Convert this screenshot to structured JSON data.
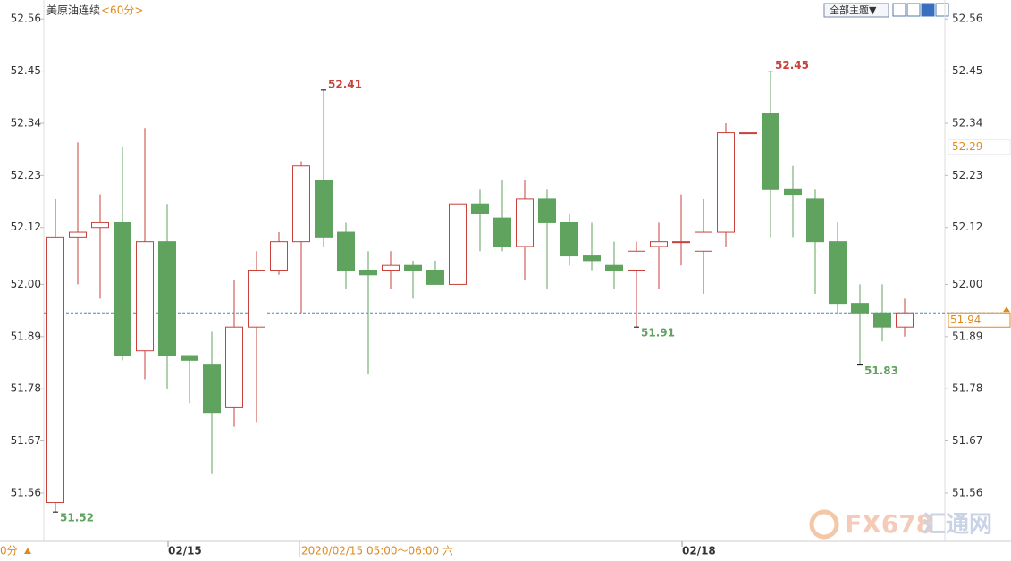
{
  "chart_data": {
    "type": "candlestick",
    "title": "美原油连续",
    "subtitle": "<60分>",
    "toolbar_button": "全部主题▼",
    "bottom_left_label": "0分",
    "crosshair_time": "2020/02/15 05:00～06:00 六",
    "watermark": [
      "FX678",
      "汇通网"
    ],
    "categories": [
      null,
      null,
      null,
      null,
      null,
      "02/15",
      null,
      null,
      null,
      null,
      null,
      null,
      null,
      null,
      null,
      null,
      null,
      null,
      null,
      null,
      null,
      null,
      null,
      null,
      null,
      null,
      null,
      null,
      "02/18",
      null,
      null,
      null,
      null,
      null,
      null,
      null,
      null,
      null,
      null
    ],
    "series": [
      {
        "up_color": "#c8413a",
        "down_color": "#5fa35e",
        "open": [
          51.54,
          52.1,
          52.12,
          52.13,
          51.86,
          52.09,
          51.85,
          51.83,
          51.74,
          51.91,
          52.03,
          52.09,
          52.22,
          52.11,
          52.03,
          52.03,
          52.04,
          52.03,
          52.0,
          52.17,
          52.14,
          52.08,
          52.18,
          52.13,
          52.06,
          52.04,
          52.03,
          52.08,
          52.09,
          52.07,
          52.11,
          52.32,
          52.36,
          52.2,
          52.18,
          52.09,
          51.96,
          51.94,
          51.91
        ],
        "high": [
          52.18,
          52.3,
          52.19,
          52.29,
          52.33,
          52.17,
          51.85,
          51.9,
          52.01,
          52.07,
          52.11,
          52.26,
          52.41,
          52.13,
          52.07,
          52.07,
          52.05,
          52.05,
          52.17,
          52.2,
          52.22,
          52.22,
          52.2,
          52.15,
          52.13,
          52.09,
          52.09,
          52.13,
          52.19,
          52.18,
          52.34,
          52.32,
          52.45,
          52.25,
          52.2,
          52.13,
          52.0,
          52.0,
          51.97
        ],
        "low": [
          51.52,
          52.0,
          51.97,
          51.84,
          51.8,
          51.78,
          51.75,
          51.6,
          51.7,
          51.71,
          52.02,
          51.94,
          52.08,
          51.99,
          51.81,
          51.99,
          51.97,
          52.0,
          52.0,
          52.07,
          52.07,
          52.01,
          51.99,
          52.04,
          52.03,
          51.99,
          51.91,
          51.99,
          52.04,
          51.98,
          52.08,
          52.32,
          52.1,
          52.1,
          51.98,
          51.94,
          51.83,
          51.88,
          51.89
        ],
        "close": [
          52.1,
          52.11,
          52.13,
          51.85,
          52.09,
          51.85,
          51.84,
          51.73,
          51.91,
          52.03,
          52.09,
          52.25,
          52.1,
          52.03,
          52.02,
          52.04,
          52.03,
          52.0,
          52.17,
          52.15,
          52.08,
          52.18,
          52.13,
          52.06,
          52.05,
          52.03,
          52.07,
          52.09,
          52.09,
          52.11,
          52.32,
          52.32,
          52.2,
          52.19,
          52.09,
          51.96,
          51.94,
          51.91,
          51.94
        ]
      }
    ],
    "high_low_labels": [
      52.41,
      52.45,
      51.52,
      51.91,
      51.83
    ],
    "current_price": 51.94,
    "crosshair_price": 52.29,
    "ylim": [
      51.46,
      52.6
    ],
    "yticks": [
      51.56,
      51.67,
      51.78,
      51.89,
      {
        "value": 52,
        "label": "52.00"
      },
      52.12,
      52.23,
      52.34,
      52.45,
      52.56
    ]
  }
}
